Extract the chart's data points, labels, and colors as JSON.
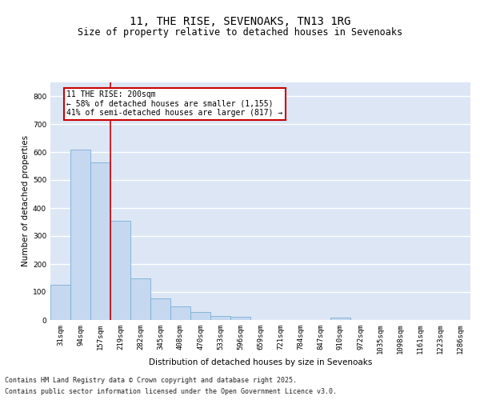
{
  "title": "11, THE RISE, SEVENOAKS, TN13 1RG",
  "subtitle": "Size of property relative to detached houses in Sevenoaks",
  "xlabel": "Distribution of detached houses by size in Sevenoaks",
  "ylabel": "Number of detached properties",
  "categories": [
    "31sqm",
    "94sqm",
    "157sqm",
    "219sqm",
    "282sqm",
    "345sqm",
    "408sqm",
    "470sqm",
    "533sqm",
    "596sqm",
    "659sqm",
    "721sqm",
    "784sqm",
    "847sqm",
    "910sqm",
    "972sqm",
    "1035sqm",
    "1098sqm",
    "1161sqm",
    "1223sqm",
    "1286sqm"
  ],
  "values": [
    127,
    608,
    563,
    355,
    150,
    78,
    50,
    30,
    13,
    12,
    0,
    0,
    0,
    0,
    10,
    0,
    0,
    0,
    0,
    0,
    0
  ],
  "bar_color": "#c5d8f0",
  "bar_edge_color": "#7aafd4",
  "vline_x": 2.5,
  "vline_color": "#cc0000",
  "annotation_text": "11 THE RISE: 200sqm\n← 58% of detached houses are smaller (1,155)\n41% of semi-detached houses are larger (817) →",
  "annotation_box_color": "#cc0000",
  "annotation_box_bg": "white",
  "ylim": [
    0,
    850
  ],
  "yticks": [
    0,
    100,
    200,
    300,
    400,
    500,
    600,
    700,
    800
  ],
  "background_color": "#dce6f5",
  "grid_color": "white",
  "footer_line1": "Contains HM Land Registry data © Crown copyright and database right 2025.",
  "footer_line2": "Contains public sector information licensed under the Open Government Licence v3.0.",
  "title_fontsize": 10,
  "subtitle_fontsize": 8.5,
  "axis_label_fontsize": 7.5,
  "tick_fontsize": 6.5,
  "annotation_fontsize": 7,
  "footer_fontsize": 6
}
